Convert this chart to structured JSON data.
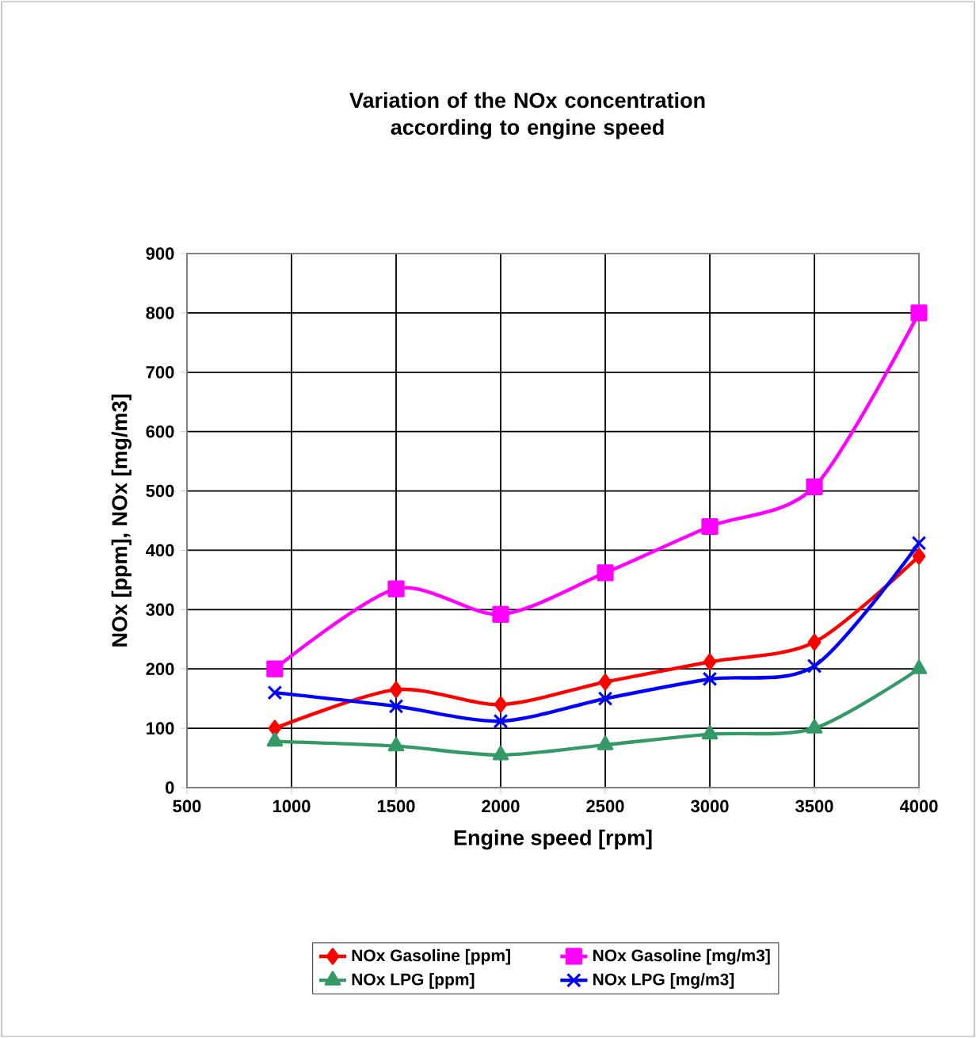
{
  "chart_data": {
    "type": "line",
    "title": "Variation of the NOx concentration according to engine speed",
    "xlabel": "Engine speed [rpm]",
    "ylabel": "NOx [ppm], NOx [mg/m3]",
    "x": [
      920,
      1500,
      2000,
      2500,
      3000,
      3500,
      4000
    ],
    "series": [
      {
        "name": "NOx Gasoline [ppm]",
        "color": "#ff0000",
        "marker": "diamond",
        "values": [
          100,
          165,
          140,
          178,
          212,
          245,
          390
        ]
      },
      {
        "name": "NOx Gasoline [mg/m3]",
        "color": "#ff00ff",
        "marker": "square",
        "values": [
          200,
          335,
          292,
          362,
          440,
          507,
          800
        ]
      },
      {
        "name": "NOx LPG [ppm]",
        "color": "#339966",
        "marker": "triangle",
        "values": [
          78,
          70,
          55,
          72,
          90,
          100,
          200
        ]
      },
      {
        "name": "NOx LPG [mg/m3]",
        "color": "#0000ff",
        "marker": "cross",
        "values": [
          160,
          137,
          112,
          150,
          183,
          205,
          412
        ]
      }
    ],
    "xlim": [
      500,
      4000
    ],
    "xticks": [
      500,
      1000,
      1500,
      2000,
      2500,
      3000,
      3500,
      4000
    ],
    "ylim": [
      0,
      900
    ],
    "yticks": [
      0,
      100,
      200,
      300,
      400,
      500,
      600,
      700,
      800,
      900
    ],
    "grid": true,
    "legend": "bottom"
  }
}
